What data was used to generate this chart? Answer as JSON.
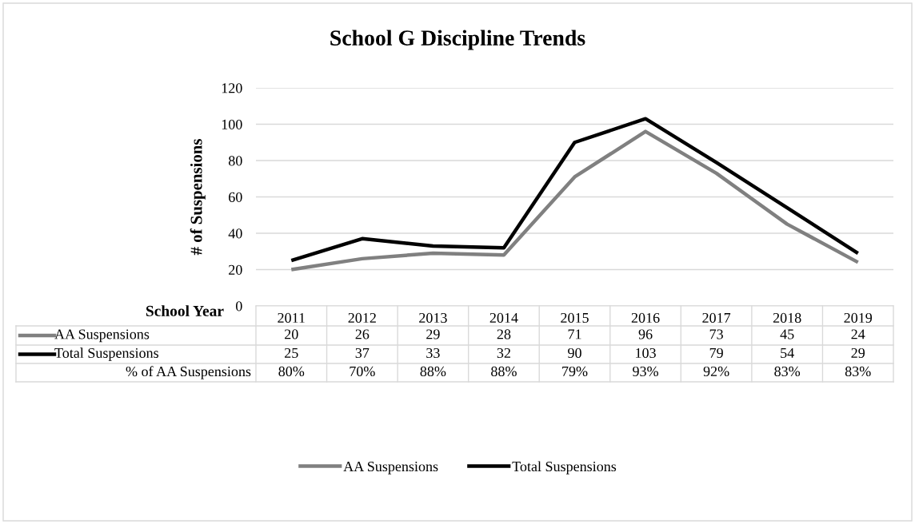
{
  "chart_data": {
    "type": "line",
    "title": "School G Discipline Trends",
    "xlabel": "School Year",
    "ylabel": "# of Suspensions",
    "categories": [
      "2011",
      "2012",
      "2013",
      "2014",
      "2015",
      "2016",
      "2017",
      "2018",
      "2019"
    ],
    "series": [
      {
        "name": "AA Suspensions",
        "color": "#808080",
        "values": [
          20,
          26,
          29,
          28,
          71,
          96,
          73,
          45,
          24
        ]
      },
      {
        "name": "Total Suspensions",
        "color": "#000000",
        "values": [
          25,
          37,
          33,
          32,
          90,
          103,
          79,
          54,
          29
        ]
      }
    ],
    "annotations": [
      "% of AA Suspensions",
      "80%",
      "70%",
      "88%",
      "88%",
      "79%",
      "93%",
      "92%",
      "83%",
      "83%"
    ],
    "ylim": [
      0,
      120
    ],
    "yticks": [
      0,
      20,
      40,
      60,
      80,
      100,
      120
    ],
    "grid": "y",
    "legend": "bottom",
    "data_labels": true,
    "marker": "none",
    "line_style": "solid"
  }
}
